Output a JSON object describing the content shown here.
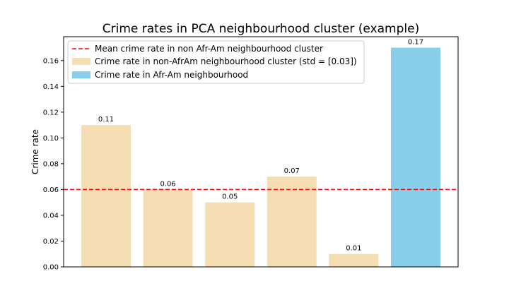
{
  "chart_data": {
    "type": "bar",
    "title": "Crime rates in PCA neighbourhood cluster (example)",
    "xlabel": "",
    "ylabel": "Crime rate",
    "ylim": [
      0,
      0.1785
    ],
    "yticks": [
      0.0,
      0.02,
      0.04,
      0.06,
      0.08,
      0.1,
      0.12,
      0.14,
      0.16
    ],
    "ytick_labels": [
      "0.00",
      "0.02",
      "0.04",
      "0.06",
      "0.08",
      "0.10",
      "0.12",
      "0.14",
      "0.16"
    ],
    "categories": [
      "",
      "",
      "",
      "",
      "",
      ""
    ],
    "values": [
      0.11,
      0.06,
      0.05,
      0.07,
      0.01,
      0.17
    ],
    "data_labels": [
      "0.11",
      "0.06",
      "0.05",
      "0.07",
      "0.01",
      "0.17"
    ],
    "bar_series": [
      0,
      0,
      0,
      0,
      0,
      1
    ],
    "series": [
      {
        "name": "Crime rate in non-AfrAm neighbourhood cluster (std =  [0.03])",
        "color": "#f5deb3"
      },
      {
        "name": "Crime rate in Afr-Am neighbourhood",
        "color": "#87ceeb"
      }
    ],
    "reference_line": {
      "name": "Mean crime rate in non Afr-Am neighbourhood cluster",
      "value": 0.06,
      "color": "#ff0000",
      "style": "dashed"
    },
    "legend_position": "top-left",
    "grid": false
  }
}
